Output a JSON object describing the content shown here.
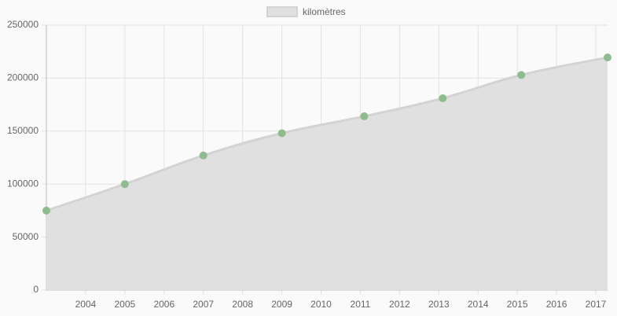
{
  "chart_data": {
    "type": "area",
    "x": [
      2003,
      2005,
      2007,
      2009,
      2011.1,
      2013.1,
      2015.1,
      2017.3
    ],
    "series": [
      {
        "name": "kilomètres",
        "color": "#d3d3d3",
        "fill": "#e0e0e0",
        "point_color": "#8fbc8f",
        "values": [
          75000,
          100000,
          127000,
          148000,
          164000,
          181000,
          203000,
          219500
        ]
      }
    ],
    "xlim": [
      2003,
      2017.3
    ],
    "xticks": [
      2004,
      2005,
      2006,
      2007,
      2008,
      2009,
      2010,
      2011,
      2012,
      2013,
      2014,
      2015,
      2016,
      2017
    ],
    "ylim": [
      0,
      250000
    ],
    "yticks": [
      0,
      50000,
      100000,
      150000,
      200000,
      250000
    ],
    "grid": true,
    "legend": "top"
  }
}
